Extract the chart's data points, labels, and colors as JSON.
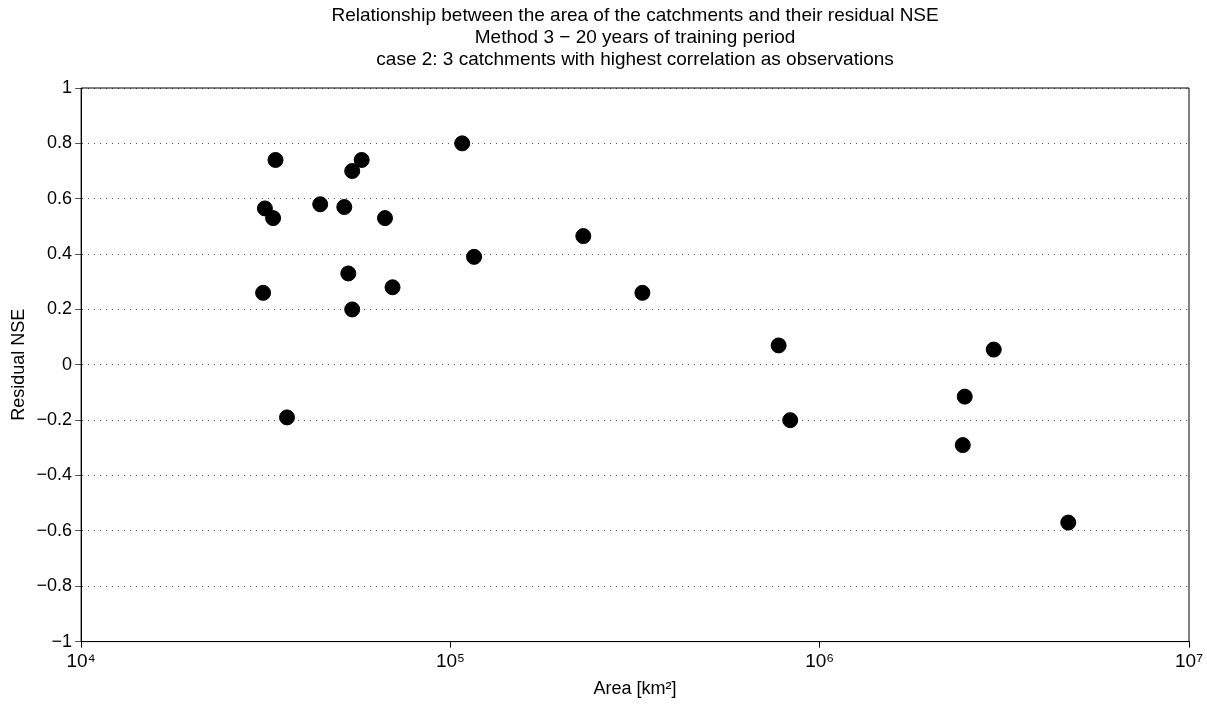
{
  "chart_data": {
    "type": "scatter",
    "title": "Relationship between the area of the catchments and their residual NSE",
    "subtitle": "Method 3 − 20 years of training period\ncase 2: 3 catchments with highest correlation as observations",
    "xlabel": "Area [km²]",
    "ylabel": "Residual NSE",
    "x": [
      33600,
      57500,
      54200,
      107600,
      31450,
      33100,
      44400,
      51600,
      66500,
      115900,
      52900,
      31100,
      69700,
      54200,
      36100,
      229000,
      331000,
      774000,
      832000,
      2960000,
      2470000,
      2440000,
      4710000
    ],
    "series": [
      {
        "color": "#000000",
        "values": [
          0.74,
          0.74,
          0.7,
          0.8,
          0.565,
          0.53,
          0.58,
          0.57,
          0.53,
          0.39,
          0.33,
          0.26,
          0.28,
          0.2,
          -0.19,
          0.465,
          0.26,
          0.07,
          -0.2,
          0.055,
          -0.115,
          -0.29,
          -0.57
        ]
      }
    ],
    "log": "x",
    "xlim": [
      10000,
      10000000
    ],
    "xticks": [
      {
        "value": 10000,
        "label": "10⁴"
      },
      {
        "value": 100000,
        "label": "10⁵"
      },
      {
        "value": 1000000,
        "label": "10⁶"
      },
      {
        "value": 10000000,
        "label": "10⁷"
      }
    ],
    "ylim": [
      -1,
      1
    ],
    "yticks": [
      {
        "value": -1,
        "label": "−1"
      },
      {
        "value": -0.8,
        "label": "−0.8"
      },
      {
        "value": -0.6,
        "label": "−0.6"
      },
      {
        "value": -0.4,
        "label": "−0.4"
      },
      {
        "value": -0.2,
        "label": "−0.2"
      },
      0,
      0.2,
      0.4,
      0.6,
      0.8,
      1
    ],
    "grid": "y",
    "legend": false,
    "marker": "circle"
  }
}
